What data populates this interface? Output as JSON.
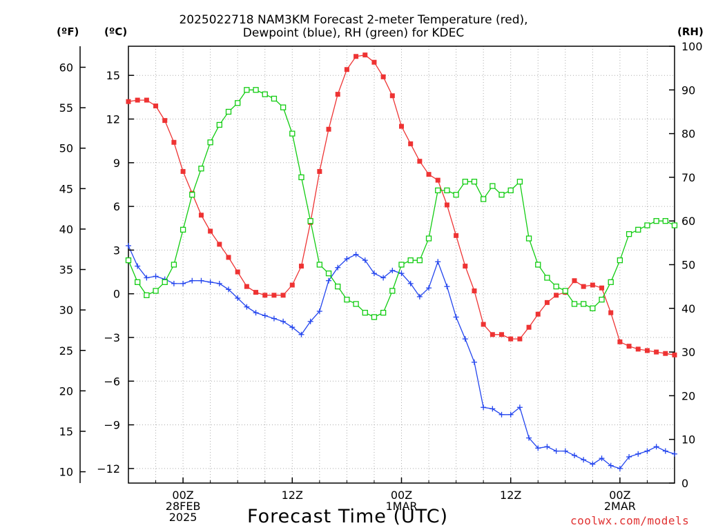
{
  "chart_data": {
    "type": "line",
    "title_line1": "2025022718 NAM3KM Forecast 2-meter Temperature (red),",
    "title_line2": "Dewpoint (blue), RH (green) for KDEC",
    "xlabel": "Forecast Time (UTC)",
    "credit": "coolwx.com/models",
    "units": {
      "fahrenheit": "(ºF)",
      "celsius": "(ºC)",
      "rh": "(RH)"
    },
    "x_hours": {
      "start": -6,
      "end": 54,
      "step": 1
    },
    "x_ticks": [
      {
        "hour": 0,
        "lines": [
          "00Z",
          "28FEB",
          "2025"
        ]
      },
      {
        "hour": 12,
        "lines": [
          "12Z"
        ]
      },
      {
        "hour": 24,
        "lines": [
          "00Z",
          "1MAR"
        ]
      },
      {
        "hour": 36,
        "lines": [
          "12Z"
        ]
      },
      {
        "hour": 48,
        "lines": [
          "00Z",
          "2MAR"
        ]
      }
    ],
    "left_c_axis": {
      "min": -13,
      "max": 17,
      "ticks": [
        -12,
        -9,
        -6,
        -3,
        0,
        3,
        6,
        9,
        12,
        15
      ]
    },
    "left_f_axis": {
      "ticks": [
        10,
        15,
        20,
        25,
        30,
        35,
        40,
        45,
        50,
        55,
        60
      ]
    },
    "right_rh_axis": {
      "min": 0,
      "max": 100,
      "ticks": [
        0,
        10,
        20,
        30,
        40,
        50,
        60,
        70,
        80,
        90,
        100
      ]
    },
    "grid": true,
    "colors": {
      "temperature": "#ee3333",
      "dewpoint": "#2244ee",
      "rh": "#11cc11",
      "grid": "#aaaaaa"
    },
    "series": [
      {
        "name": "Temperature",
        "axis": "celsius",
        "values": [
          13.2,
          13.3,
          13.3,
          12.9,
          11.9,
          10.4,
          8.4,
          6.9,
          5.4,
          4.3,
          3.4,
          2.5,
          1.5,
          0.5,
          0.1,
          -0.1,
          -0.1,
          -0.1,
          0.6,
          1.9,
          4.9,
          8.4,
          11.3,
          13.7,
          15.4,
          16.3,
          16.4,
          15.9,
          14.9,
          13.6,
          11.5,
          10.3,
          9.1,
          8.2,
          7.8,
          6.1,
          4.0,
          1.9,
          0.2,
          -2.1,
          -2.8,
          -2.8,
          -3.1,
          -3.1,
          -2.3,
          -1.4,
          -0.6,
          -0.1,
          0.1,
          0.9,
          0.5,
          0.6,
          0.4,
          -1.3,
          -3.3,
          -3.6,
          -3.8,
          -3.9,
          -4.0,
          -4.1,
          -4.2
        ]
      },
      {
        "name": "Dewpoint",
        "axis": "celsius",
        "values": [
          3.3,
          1.9,
          1.1,
          1.2,
          1.0,
          0.7,
          0.7,
          0.9,
          0.9,
          0.8,
          0.7,
          0.3,
          -0.3,
          -0.9,
          -1.3,
          -1.5,
          -1.7,
          -1.9,
          -2.3,
          -2.8,
          -1.9,
          -1.2,
          0.9,
          1.8,
          2.4,
          2.7,
          2.3,
          1.4,
          1.1,
          1.6,
          1.4,
          0.7,
          -0.2,
          0.4,
          2.2,
          0.5,
          -1.6,
          -3.1,
          -4.7,
          -7.8,
          -7.9,
          -8.3,
          -8.3,
          -7.8,
          -9.9,
          -10.6,
          -10.5,
          -10.8,
          -10.8,
          -11.1,
          -11.4,
          -11.7,
          -11.3,
          -11.8,
          -12.0,
          -11.2,
          -11.0,
          -10.8,
          -10.5,
          -10.8,
          -11.0
        ]
      },
      {
        "name": "RH",
        "axis": "rh",
        "values": [
          51,
          46,
          43,
          44,
          46,
          50,
          58,
          66,
          72,
          78,
          82,
          85,
          87,
          90,
          90,
          89,
          88,
          86,
          80,
          70,
          60,
          50,
          48,
          45,
          42,
          41,
          39,
          38,
          39,
          44,
          50,
          51,
          51,
          56,
          67,
          67,
          66,
          69,
          69,
          65,
          68,
          66,
          67,
          69,
          56,
          50,
          47,
          45,
          44,
          41,
          41,
          40,
          42,
          46,
          51,
          57,
          58,
          59,
          60,
          60,
          59
        ]
      }
    ]
  }
}
